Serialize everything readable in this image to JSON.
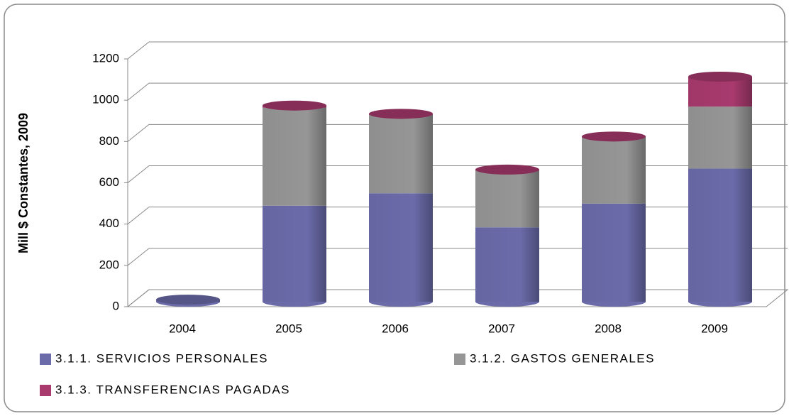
{
  "chart_data": {
    "type": "bar3d_stacked",
    "y_label": "Mill $ Constantes, 2009",
    "categories": [
      "2004",
      "2005",
      "2006",
      "2007",
      "2008",
      "2009"
    ],
    "series": [
      {
        "name": "3.1.1. SERVICIOS PERSONALES",
        "color": "#6b6baa",
        "values": [
          10,
          465,
          525,
          360,
          475,
          645
        ]
      },
      {
        "name": "3.1.2. GASTOS GENERALES",
        "color": "#969696",
        "values": [
          0,
          475,
          380,
          275,
          320,
          300
        ]
      },
      {
        "name": "3.1.3. TRANSFERENCIAS PAGADAS",
        "color": "#a83a6e",
        "values": [
          0,
          10,
          5,
          5,
          5,
          145
        ]
      }
    ],
    "ylim": [
      0,
      1200
    ],
    "yticks": [
      0,
      200,
      400,
      600,
      800,
      1000,
      1200
    ],
    "grid": true
  }
}
